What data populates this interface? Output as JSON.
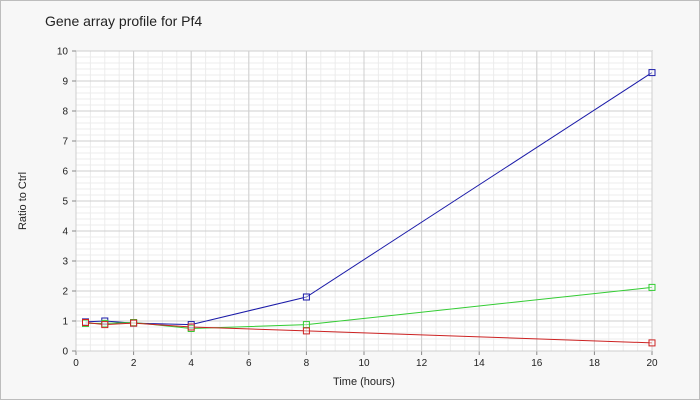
{
  "chart_data": {
    "type": "line",
    "title": "Gene array profile for Pf4",
    "xlabel": "Time (hours)",
    "ylabel": "Ratio to Ctrl",
    "xlim": [
      0,
      20
    ],
    "ylim": [
      0,
      10
    ],
    "x_ticks": [
      "0",
      "2",
      "4",
      "6",
      "8",
      "10",
      "12",
      "14",
      "16",
      "18",
      "20"
    ],
    "y_ticks": [
      "0",
      "1",
      "2",
      "3",
      "4",
      "5",
      "6",
      "7",
      "8",
      "9",
      "10"
    ],
    "grid": true,
    "legend": "none",
    "x": [
      0.33,
      1,
      2,
      4,
      8,
      20
    ],
    "series": [
      {
        "color": "#1a1aa8",
        "values": [
          0.97,
          1.0,
          0.93,
          0.88,
          1.8,
          9.28
        ]
      },
      {
        "color": "#33cc33",
        "values": [
          0.92,
          0.92,
          0.95,
          0.75,
          0.88,
          2.12
        ]
      },
      {
        "color": "#cc2222",
        "values": [
          0.95,
          0.88,
          0.93,
          0.8,
          0.67,
          0.27
        ]
      }
    ]
  }
}
